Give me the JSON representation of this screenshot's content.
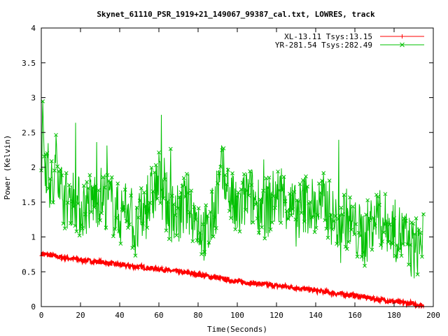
{
  "chart_data": {
    "type": "line",
    "title": "Skynet_61110_PSR_1919+21_149067_99387_cal.txt, LOWRES, track",
    "xlabel": "Time(Seconds)",
    "ylabel": "Power (Kelvin)",
    "xlim": [
      0,
      200
    ],
    "ylim": [
      0,
      4
    ],
    "xticks": [
      0,
      20,
      40,
      60,
      80,
      100,
      120,
      140,
      160,
      180,
      200
    ],
    "yticks": [
      0,
      0.5,
      1,
      1.5,
      2,
      2.5,
      3,
      3.5,
      4
    ],
    "xtick_labels": [
      "0",
      "20",
      "40",
      "60",
      "80",
      "100",
      "120",
      "140",
      "160",
      "180",
      "200"
    ],
    "ytick_labels": [
      "0",
      "0.5",
      "1",
      "1.5",
      "2",
      "2.5",
      "3",
      "3.5",
      "4"
    ],
    "grid": false,
    "legend_position": "top-right",
    "series": [
      {
        "name": "XL-13.11 Tsys:13.15",
        "color": "#ff0000",
        "marker": "plus",
        "x": [
          0,
          10,
          20,
          30,
          40,
          50,
          60,
          70,
          80,
          90,
          100,
          110,
          120,
          130,
          140,
          150,
          160,
          170,
          180,
          190,
          195
        ],
        "values": [
          0.76,
          0.71,
          0.67,
          0.64,
          0.6,
          0.57,
          0.54,
          0.5,
          0.46,
          0.41,
          0.36,
          0.33,
          0.3,
          0.27,
          0.23,
          0.19,
          0.16,
          0.11,
          0.07,
          0.04,
          0.01
        ]
      },
      {
        "name": "YR-281.54 Tsys:282.49",
        "color": "#00c000",
        "marker": "cross",
        "x": [
          0,
          1,
          2,
          4,
          6,
          8,
          10,
          13,
          16,
          20,
          25,
          30,
          35,
          40,
          45,
          48,
          50,
          55,
          60,
          65,
          70,
          75,
          80,
          85,
          90,
          92,
          95,
          100,
          105,
          110,
          115,
          120,
          125,
          130,
          135,
          140,
          145,
          150,
          155,
          160,
          165,
          170,
          175,
          180,
          185,
          190,
          195
        ],
        "values": [
          2.3,
          2.6,
          2.1,
          1.9,
          1.6,
          2.2,
          1.7,
          1.5,
          1.6,
          1.4,
          1.5,
          1.6,
          1.5,
          1.3,
          1.5,
          1.0,
          1.2,
          1.5,
          1.8,
          1.4,
          1.3,
          1.5,
          1.2,
          1.0,
          1.6,
          1.9,
          1.7,
          1.3,
          1.6,
          1.5,
          1.4,
          1.6,
          1.5,
          1.3,
          1.5,
          1.4,
          1.5,
          1.2,
          1.3,
          1.1,
          1.0,
          1.3,
          1.2,
          1.1,
          1.0,
          0.8,
          1.0
        ]
      }
    ]
  }
}
